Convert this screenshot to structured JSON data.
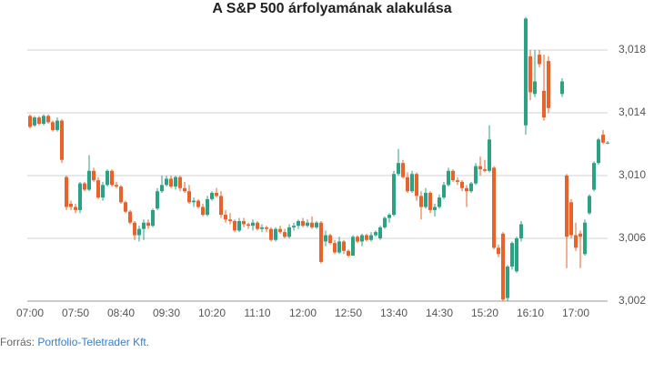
{
  "chart_data": {
    "type": "candlestick",
    "title": "A S&P 500 árfolyamának alakulása",
    "up_color": "#2ba284",
    "down_color": "#e9622a",
    "grid": true,
    "ylim": [
      3002,
      3020.2
    ],
    "yticks": [
      {
        "value": 3002,
        "label": "3,002"
      },
      {
        "value": 3006,
        "label": "3,006"
      },
      {
        "value": 3010,
        "label": "3,010"
      },
      {
        "value": 3014,
        "label": "3,014"
      },
      {
        "value": 3018,
        "label": "3,018"
      }
    ],
    "categories": [
      "07:00",
      null,
      null,
      null,
      null,
      null,
      null,
      null,
      null,
      null,
      "07:50",
      null,
      null,
      null,
      null,
      null,
      null,
      null,
      null,
      null,
      "08:40",
      null,
      null,
      null,
      null,
      null,
      null,
      null,
      null,
      null,
      "09:30",
      null,
      null,
      null,
      null,
      null,
      null,
      null,
      null,
      null,
      "10:20",
      null,
      null,
      null,
      null,
      null,
      null,
      null,
      null,
      null,
      "11:10",
      null,
      null,
      null,
      null,
      null,
      null,
      null,
      null,
      null,
      "12:00",
      null,
      null,
      null,
      null,
      null,
      null,
      null,
      null,
      null,
      "12:50",
      null,
      null,
      null,
      null,
      null,
      null,
      null,
      null,
      null,
      "13:40",
      null,
      null,
      null,
      null,
      null,
      null,
      null,
      null,
      null,
      "14:30",
      null,
      null,
      null,
      null,
      null,
      null,
      null,
      null,
      null,
      "15:20",
      null,
      null,
      null,
      null,
      null,
      null,
      null,
      null,
      null,
      "16:10",
      null,
      null,
      null,
      null,
      null,
      null,
      null,
      null,
      null,
      "17:00",
      null,
      null,
      null,
      null,
      null,
      null,
      null
    ],
    "candles": [
      [
        3013.8,
        3013.9,
        3013.0,
        3013.1
      ],
      [
        3013.2,
        3013.8,
        3013.1,
        3013.7
      ],
      [
        3013.7,
        3013.8,
        3013.2,
        3013.3
      ],
      [
        3013.3,
        3013.9,
        3013.2,
        3013.8
      ],
      [
        3013.8,
        3013.9,
        3013.3,
        3013.4
      ],
      [
        3013.4,
        3013.5,
        3012.8,
        3012.9
      ],
      [
        3012.9,
        3013.7,
        3012.8,
        3013.5
      ],
      [
        3013.5,
        3013.6,
        3010.8,
        3011.0
      ],
      [
        3009.9,
        3010.0,
        3007.8,
        3008.0
      ],
      [
        3008.2,
        3008.4,
        3007.8,
        3008.0
      ],
      [
        3008.0,
        3008.2,
        3007.6,
        3007.8
      ],
      [
        3007.8,
        3009.6,
        3007.6,
        3009.5
      ],
      [
        3009.5,
        3009.6,
        3009.0,
        3009.1
      ],
      [
        3009.1,
        3011.3,
        3009.0,
        3010.3
      ],
      [
        3010.3,
        3010.5,
        3009.6,
        3009.7
      ],
      [
        3009.7,
        3009.9,
        3008.5,
        3008.6
      ],
      [
        3008.6,
        3009.6,
        3008.4,
        3009.4
      ],
      [
        3009.4,
        3010.4,
        3009.3,
        3010.3
      ],
      [
        3010.3,
        3010.4,
        3009.3,
        3009.4
      ],
      [
        3009.4,
        3009.6,
        3009.2,
        3009.3
      ],
      [
        3009.3,
        3009.4,
        3008.2,
        3008.3
      ],
      [
        3008.3,
        3008.4,
        3007.6,
        3007.7
      ],
      [
        3007.7,
        3007.8,
        3006.9,
        3007.0
      ],
      [
        3007.0,
        3007.1,
        3005.9,
        3006.2
      ],
      [
        3006.2,
        3006.8,
        3005.8,
        3006.6
      ],
      [
        3006.6,
        3007.2,
        3005.9,
        3007.0
      ],
      [
        3007.0,
        3007.2,
        3006.6,
        3006.8
      ],
      [
        3006.8,
        3007.9,
        3006.7,
        3007.8
      ],
      [
        3007.9,
        3009.2,
        3007.8,
        3009.0
      ],
      [
        3009.0,
        3010.0,
        3008.9,
        3009.4
      ],
      [
        3009.4,
        3010.0,
        3009.3,
        3009.8
      ],
      [
        3009.8,
        3010.0,
        3009.2,
        3009.3
      ],
      [
        3009.3,
        3010.0,
        3009.1,
        3009.9
      ],
      [
        3009.9,
        3010.0,
        3009.0,
        3009.2
      ],
      [
        3009.2,
        3009.6,
        3008.9,
        3009.0
      ],
      [
        3009.0,
        3009.4,
        3008.2,
        3008.3
      ],
      [
        3008.3,
        3008.6,
        3008.0,
        3008.4
      ],
      [
        3008.4,
        3008.5,
        3007.9,
        3008.0
      ],
      [
        3008.0,
        3008.2,
        3007.4,
        3007.5
      ],
      [
        3007.5,
        3008.7,
        3007.4,
        3008.5
      ],
      [
        3008.5,
        3009.0,
        3008.4,
        3008.9
      ],
      [
        3008.9,
        3009.2,
        3008.6,
        3008.7
      ],
      [
        3008.7,
        3009.0,
        3007.3,
        3007.5
      ],
      [
        3007.5,
        3007.8,
        3007.0,
        3007.2
      ],
      [
        3007.2,
        3007.6,
        3006.9,
        3007.1
      ],
      [
        3007.1,
        3007.2,
        3006.4,
        3006.5
      ],
      [
        3006.5,
        3007.3,
        3006.4,
        3007.1
      ],
      [
        3007.1,
        3007.3,
        3006.7,
        3006.9
      ],
      [
        3006.9,
        3007.0,
        3006.6,
        3006.8
      ],
      [
        3006.8,
        3007.2,
        3006.5,
        3007.0
      ],
      [
        3007.0,
        3007.1,
        3006.5,
        3006.6
      ],
      [
        3006.6,
        3006.9,
        3006.4,
        3006.7
      ],
      [
        3006.7,
        3006.8,
        3006.4,
        3006.6
      ],
      [
        3006.6,
        3006.7,
        3005.8,
        3005.9
      ],
      [
        3005.9,
        3006.7,
        3005.8,
        3006.6
      ],
      [
        3006.6,
        3006.8,
        3006.3,
        3006.4
      ],
      [
        3006.4,
        3006.6,
        3006.0,
        3006.1
      ],
      [
        3006.1,
        3006.9,
        3006.0,
        3006.7
      ],
      [
        3006.7,
        3007.0,
        3006.5,
        3006.8
      ],
      [
        3006.8,
        3007.2,
        3006.6,
        3007.1
      ],
      [
        3007.1,
        3007.3,
        3006.7,
        3006.8
      ],
      [
        3006.8,
        3007.2,
        3006.7,
        3007.0
      ],
      [
        3007.0,
        3007.4,
        3006.6,
        3006.7
      ],
      [
        3006.7,
        3007.1,
        3006.6,
        3007.0
      ],
      [
        3007.0,
        3007.1,
        3004.4,
        3004.5
      ],
      [
        3005.8,
        3006.5,
        3005.5,
        3006.2
      ],
      [
        3006.2,
        3006.3,
        3005.6,
        3005.7
      ],
      [
        3005.7,
        3005.9,
        3005.0,
        3005.1
      ],
      [
        3005.1,
        3006.1,
        3005.0,
        3005.8
      ],
      [
        3005.8,
        3005.9,
        3005.0,
        3005.2
      ],
      [
        3005.2,
        3005.3,
        3004.8,
        3004.9
      ],
      [
        3004.9,
        3006.2,
        3004.9,
        3006.1
      ],
      [
        3006.1,
        3006.2,
        3005.7,
        3005.8
      ],
      [
        3005.8,
        3006.3,
        3005.5,
        3006.2
      ],
      [
        3006.2,
        3006.3,
        3005.8,
        3005.9
      ],
      [
        3005.9,
        3006.4,
        3005.8,
        3006.2
      ],
      [
        3006.2,
        3006.5,
        3006.1,
        3006.4
      ],
      [
        3006.0,
        3006.8,
        3005.9,
        3006.7
      ],
      [
        3006.7,
        3007.4,
        3006.6,
        3007.3
      ],
      [
        3007.3,
        3007.6,
        3007.0,
        3007.5
      ],
      [
        3007.5,
        3010.3,
        3007.4,
        3010.1
      ],
      [
        3010.1,
        3011.7,
        3010.0,
        3010.8
      ],
      [
        3010.8,
        3011.0,
        3009.8,
        3009.9
      ],
      [
        3009.9,
        3010.2,
        3008.9,
        3009.0
      ],
      [
        3009.0,
        3010.3,
        3008.9,
        3010.1
      ],
      [
        3010.1,
        3010.2,
        3008.4,
        3008.7
      ],
      [
        3008.7,
        3009.0,
        3007.2,
        3008.0
      ],
      [
        3008.0,
        3009.2,
        3007.9,
        3008.9
      ],
      [
        3008.9,
        3009.0,
        3007.6,
        3007.8
      ],
      [
        3007.8,
        3008.2,
        3007.4,
        3008.0
      ],
      [
        3008.0,
        3008.8,
        3007.9,
        3008.6
      ],
      [
        3008.6,
        3009.6,
        3008.5,
        3009.4
      ],
      [
        3009.4,
        3010.5,
        3009.3,
        3010.3
      ],
      [
        3010.3,
        3010.4,
        3009.6,
        3009.7
      ],
      [
        3009.7,
        3009.9,
        3009.4,
        3009.6
      ],
      [
        3009.6,
        3009.7,
        3009.0,
        3009.2
      ],
      [
        3009.2,
        3009.4,
        3008.0,
        3009.0
      ],
      [
        3009.0,
        3009.6,
        3008.9,
        3009.5
      ],
      [
        3009.5,
        3010.8,
        3009.4,
        3010.6
      ],
      [
        3010.6,
        3011.2,
        3010.0,
        3010.4
      ],
      [
        3010.4,
        3011.0,
        3010.2,
        3010.3
      ],
      [
        3010.3,
        3013.2,
        3010.2,
        3012.3
      ],
      [
        3010.5,
        3010.6,
        3005.3,
        3005.4
      ],
      [
        3005.4,
        3005.6,
        3004.8,
        3005.0
      ],
      [
        3006.3,
        3006.4,
        3002.0,
        3002.1
      ],
      [
        3002.2,
        3004.3,
        3002.0,
        3004.2
      ],
      [
        3004.2,
        3005.8,
        3004.0,
        3005.7
      ],
      [
        3003.9,
        3006.1,
        3003.8,
        3006.0
      ],
      [
        3006.0,
        3007.1,
        3005.8,
        3006.9
      ],
      [
        3013.2,
        3020.1,
        3012.6,
        3020.0
      ],
      [
        3017.6,
        3018.0,
        3014.8,
        3015.3
      ],
      [
        3015.2,
        3018.0,
        3015.0,
        3016.0
      ],
      [
        3017.7,
        3018.0,
        3016.9,
        3017.1
      ],
      [
        3015.4,
        3017.7,
        3013.5,
        3013.7
      ],
      [
        3017.3,
        3017.6,
        3014.0,
        3014.3
      ],
      null,
      null,
      [
        3015.2,
        3016.2,
        3015.0,
        3016.0
      ],
      [
        3010.0,
        3010.1,
        3004.1,
        3006.1
      ],
      [
        3008.3,
        3008.5,
        3006.0,
        3006.2
      ],
      [
        3006.2,
        3007.0,
        3005.2,
        3005.4
      ],
      [
        3006.3,
        3006.5,
        3004.1,
        3006.1
      ],
      [
        3005.0,
        3007.2,
        3004.9,
        3007.0
      ],
      [
        3007.6,
        3008.8,
        3007.5,
        3008.7
      ],
      [
        3009.1,
        3010.9,
        3009.0,
        3010.8
      ],
      [
        3010.8,
        3012.4,
        3010.7,
        3012.3
      ],
      [
        3012.6,
        3012.9,
        3012.0,
        3012.1
      ],
      [
        3012.1,
        3012.2,
        3012.0,
        3012.1
      ]
    ],
    "source": {
      "label": "Forrás:",
      "text": "Portfolio-Teletrader Kft."
    }
  }
}
